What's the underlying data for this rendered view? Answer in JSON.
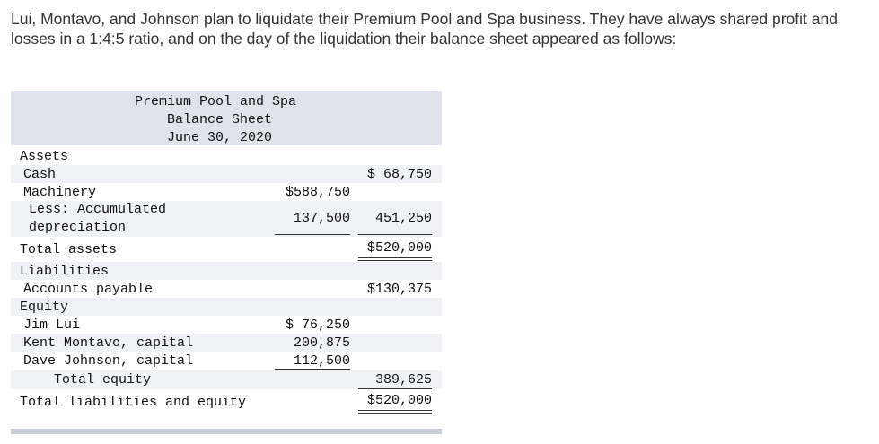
{
  "intro": "Lui, Montavo, and Johnson plan to liquidate their Premium Pool and Spa business. They have always shared profit and losses in a 1:4:5 ratio, and on the day of the liquidation their balance sheet appeared as follows:",
  "header": {
    "company": "Premium Pool and Spa",
    "statement": "Balance Sheet",
    "date": "June 30, 2020"
  },
  "assets": {
    "heading": "Assets",
    "cash_label": "Cash",
    "cash_value": "$ 68,750",
    "machinery_label": "Machinery",
    "machinery_value": "$588,750",
    "less_line1": "Less: Accumulated",
    "less_line2": "depreciation",
    "depreciation_value": "137,500",
    "net_machinery_value": "451,250",
    "total_label": "Total assets",
    "total_value": "$520,000"
  },
  "liabilities": {
    "heading": "Liabilities",
    "ap_label": "Accounts payable",
    "ap_value": "$130,375"
  },
  "equity": {
    "heading": "Equity",
    "lui_label": "Jim Lui",
    "lui_value": "$ 76,250",
    "montavo_label": "Kent Montavo, capital",
    "montavo_value": "200,875",
    "johnson_label": "Dave Johnson, capital",
    "johnson_value": "112,500",
    "total_label": "Total equity",
    "total_value": "389,625"
  },
  "total_le_label": "Total liabilities and equity",
  "total_le_value": "$520,000"
}
